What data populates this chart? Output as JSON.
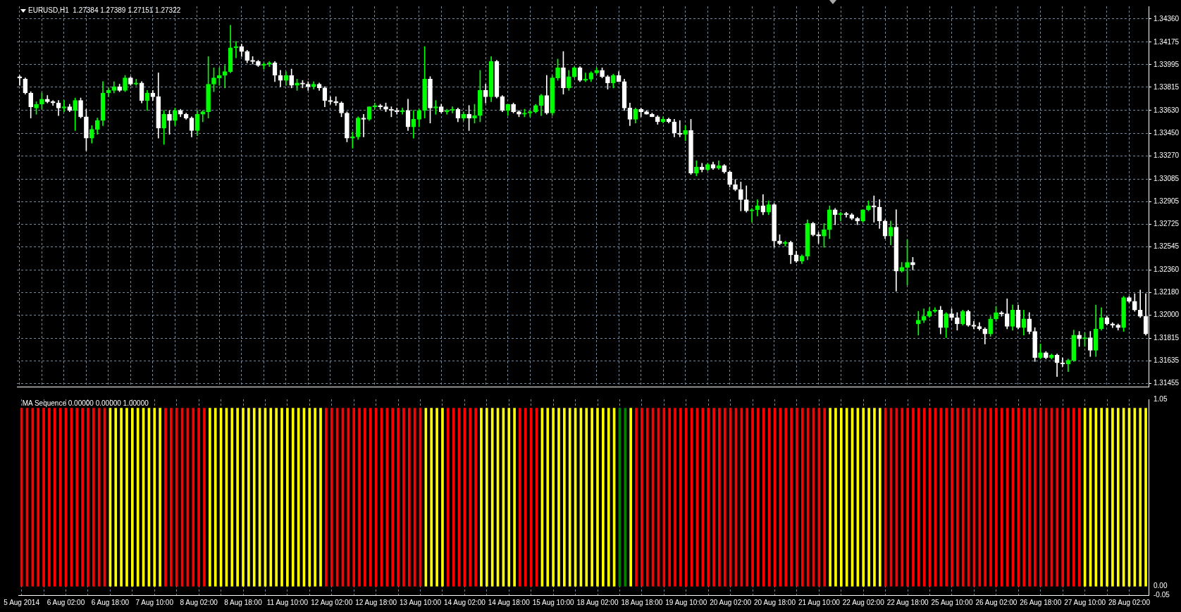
{
  "chart_data": [
    {
      "type": "candlestick",
      "title": "EURUSD,H1  1.27384 1.27389 1.27151 1.27322",
      "categories": [
        null,
        null,
        null,
        null,
        null,
        null,
        null,
        null,
        null,
        null,
        null,
        null,
        null,
        null,
        null,
        null,
        null,
        null,
        null,
        null,
        null,
        null,
        null,
        null,
        null,
        null,
        null,
        null,
        null,
        null,
        null,
        null,
        null,
        null,
        null,
        null,
        null,
        null,
        null,
        null,
        null,
        null,
        null,
        null,
        null,
        null,
        null,
        null,
        null,
        null,
        null,
        null,
        null,
        null,
        null,
        null,
        null,
        null,
        null,
        null,
        null,
        null,
        null,
        null,
        null,
        null,
        null,
        null,
        null,
        null,
        null,
        null,
        null,
        null,
        null,
        null,
        null,
        null,
        null,
        null,
        null,
        null,
        null,
        null,
        null,
        null,
        null,
        null,
        null,
        null,
        null,
        null,
        null,
        null,
        null,
        null,
        null,
        null,
        null,
        null,
        null,
        null,
        null,
        null,
        null,
        null,
        null,
        null,
        null,
        null,
        null,
        null,
        null,
        null,
        null,
        null,
        null,
        null,
        null,
        null,
        null,
        null,
        null,
        null,
        null,
        null,
        null,
        null,
        null,
        null,
        null,
        null,
        null,
        null,
        null,
        null,
        null,
        null,
        null,
        null,
        null,
        null,
        null,
        null,
        null,
        null,
        null,
        null,
        null,
        null,
        null,
        null,
        null,
        null,
        null,
        null,
        null,
        null,
        null,
        null,
        null,
        null,
        null,
        null,
        null,
        null,
        null,
        null,
        null,
        null,
        null,
        null,
        null,
        null,
        null,
        null,
        null,
        null,
        null,
        null,
        null,
        null,
        null,
        null,
        null,
        null,
        null,
        null,
        null,
        null,
        null,
        null,
        null,
        null,
        null,
        null,
        null,
        null,
        null,
        null,
        null,
        null,
        null,
        null
      ],
      "ohlc": [
        [
          1.339,
          1.3391,
          1.3383,
          1.3389
        ],
        [
          1.3388,
          1.3389,
          1.3376,
          1.3377
        ],
        [
          1.3377,
          1.3378,
          1.3357,
          1.3366
        ],
        [
          1.3365,
          1.337,
          1.336,
          1.3368
        ],
        [
          1.3368,
          1.3377,
          1.3364,
          1.3372
        ],
        [
          1.3372,
          1.3375,
          1.3369,
          1.337
        ],
        [
          1.337,
          1.3371,
          1.3367,
          1.3369
        ],
        [
          1.3369,
          1.3371,
          1.3359,
          1.3365
        ],
        [
          1.3365,
          1.3371,
          1.3362,
          1.3366
        ],
        [
          1.3366,
          1.3368,
          1.3362,
          1.3363
        ],
        [
          1.3363,
          1.3373,
          1.3347,
          1.3371
        ],
        [
          1.3371,
          1.3373,
          1.3357,
          1.3358
        ],
        [
          1.3358,
          1.3364,
          1.3331,
          1.3341
        ],
        [
          1.3341,
          1.3351,
          1.3337,
          1.3348
        ],
        [
          1.3348,
          1.3357,
          1.3344,
          1.3355
        ],
        [
          1.3355,
          1.3386,
          1.3351,
          1.3377
        ],
        [
          1.3377,
          1.3381,
          1.3374,
          1.3379
        ],
        [
          1.3379,
          1.3386,
          1.3377,
          1.3382
        ],
        [
          1.3382,
          1.3384,
          1.3378,
          1.3379
        ],
        [
          1.3379,
          1.3391,
          1.3378,
          1.3389
        ],
        [
          1.3389,
          1.339,
          1.3383,
          1.3384
        ],
        [
          1.3384,
          1.3388,
          1.3383,
          1.3385
        ],
        [
          1.3385,
          1.3386,
          1.3369,
          1.3371
        ],
        [
          1.3371,
          1.3379,
          1.3363,
          1.3377
        ],
        [
          1.3377,
          1.3379,
          1.3371,
          1.3374
        ],
        [
          1.3374,
          1.3393,
          1.3341,
          1.3349
        ],
        [
          1.3349,
          1.3363,
          1.3336,
          1.336
        ],
        [
          1.336,
          1.3363,
          1.3344,
          1.3355
        ],
        [
          1.3355,
          1.3365,
          1.3351,
          1.3363
        ],
        [
          1.3363,
          1.3364,
          1.3358,
          1.336
        ],
        [
          1.336,
          1.3361,
          1.3356,
          1.3357
        ],
        [
          1.3357,
          1.3358,
          1.3342,
          1.3347
        ],
        [
          1.3347,
          1.3363,
          1.3343,
          1.336
        ],
        [
          1.336,
          1.3363,
          1.3354,
          1.3362
        ],
        [
          1.3362,
          1.3406,
          1.3357,
          1.3384
        ],
        [
          1.3384,
          1.3397,
          1.3378,
          1.3389
        ],
        [
          1.3389,
          1.3397,
          1.3383,
          1.3391
        ],
        [
          1.3391,
          1.3399,
          1.3381,
          1.3394
        ],
        [
          1.3394,
          1.3431,
          1.3393,
          1.3413
        ],
        [
          1.3413,
          1.3418,
          1.3405,
          1.3414
        ],
        [
          1.3414,
          1.3416,
          1.3406,
          1.341
        ],
        [
          1.341,
          1.3411,
          1.3401,
          1.3403
        ],
        [
          1.3403,
          1.3406,
          1.34,
          1.3402
        ],
        [
          1.3402,
          1.3403,
          1.3398,
          1.3399
        ],
        [
          1.3399,
          1.3401,
          1.3396,
          1.34
        ],
        [
          1.34,
          1.3402,
          1.3398,
          1.3401
        ],
        [
          1.3401,
          1.3402,
          1.3386,
          1.3391
        ],
        [
          1.3391,
          1.3395,
          1.3382,
          1.3387
        ],
        [
          1.3387,
          1.3394,
          1.3383,
          1.3391
        ],
        [
          1.3391,
          1.3396,
          1.3381,
          1.3383
        ],
        [
          1.3383,
          1.3388,
          1.3379,
          1.3385
        ],
        [
          1.3385,
          1.3387,
          1.3381,
          1.3384
        ],
        [
          1.3384,
          1.3386,
          1.3379,
          1.3382
        ],
        [
          1.3382,
          1.3386,
          1.338,
          1.3384
        ],
        [
          1.3384,
          1.3385,
          1.3379,
          1.3381
        ],
        [
          1.3381,
          1.3382,
          1.3366,
          1.3371
        ],
        [
          1.3371,
          1.3374,
          1.3368,
          1.337
        ],
        [
          1.337,
          1.3374,
          1.3367,
          1.3369
        ],
        [
          1.3369,
          1.337,
          1.3358,
          1.3361
        ],
        [
          1.3361,
          1.3362,
          1.3338,
          1.3341
        ],
        [
          1.3341,
          1.3346,
          1.3333,
          1.3342
        ],
        [
          1.3342,
          1.3358,
          1.334,
          1.3357
        ],
        [
          1.3357,
          1.336,
          1.3342,
          1.3356
        ],
        [
          1.3356,
          1.3366,
          1.3355,
          1.3366
        ],
        [
          1.3366,
          1.3369,
          1.3364,
          1.3367
        ],
        [
          1.3367,
          1.3368,
          1.3364,
          1.3366
        ],
        [
          1.3366,
          1.3369,
          1.3362,
          1.3364
        ],
        [
          1.3364,
          1.3366,
          1.3358,
          1.3363
        ],
        [
          1.3363,
          1.3365,
          1.336,
          1.3362
        ],
        [
          1.3362,
          1.3365,
          1.336,
          1.3363
        ],
        [
          1.3363,
          1.3372,
          1.3347,
          1.335
        ],
        [
          1.335,
          1.3363,
          1.3341,
          1.3356
        ],
        [
          1.3356,
          1.3364,
          1.335,
          1.3363
        ],
        [
          1.3363,
          1.3414,
          1.3357,
          1.3388
        ],
        [
          1.3388,
          1.339,
          1.3353,
          1.3365
        ],
        [
          1.3365,
          1.3371,
          1.336,
          1.3366
        ],
        [
          1.3366,
          1.3368,
          1.3361,
          1.3362
        ],
        [
          1.3362,
          1.3364,
          1.336,
          1.3363
        ],
        [
          1.3363,
          1.3366,
          1.3361,
          1.3364
        ],
        [
          1.3364,
          1.3365,
          1.3354,
          1.3357
        ],
        [
          1.3357,
          1.3362,
          1.3355,
          1.336
        ],
        [
          1.336,
          1.3367,
          1.3347,
          1.3357
        ],
        [
          1.3357,
          1.3368,
          1.3353,
          1.3359
        ],
        [
          1.3359,
          1.3395,
          1.3354,
          1.3379
        ],
        [
          1.3379,
          1.3384,
          1.3369,
          1.3374
        ],
        [
          1.3374,
          1.3406,
          1.337,
          1.3402
        ],
        [
          1.3402,
          1.3403,
          1.3373,
          1.3374
        ],
        [
          1.3374,
          1.3375,
          1.3362,
          1.3363
        ],
        [
          1.3363,
          1.3368,
          1.3359,
          1.3368
        ],
        [
          1.3368,
          1.3369,
          1.3361,
          1.3362
        ],
        [
          1.3362,
          1.3363,
          1.3358,
          1.336
        ],
        [
          1.336,
          1.3364,
          1.3358,
          1.3361
        ],
        [
          1.3361,
          1.3363,
          1.3358,
          1.3362
        ],
        [
          1.3362,
          1.3368,
          1.3361,
          1.3367
        ],
        [
          1.3367,
          1.3376,
          1.3359,
          1.3375
        ],
        [
          1.3375,
          1.3391,
          1.336,
          1.3361
        ],
        [
          1.3361,
          1.3391,
          1.3359,
          1.3389
        ],
        [
          1.3389,
          1.3404,
          1.3387,
          1.3397
        ],
        [
          1.3397,
          1.341,
          1.3376,
          1.3381
        ],
        [
          1.3381,
          1.3395,
          1.3379,
          1.339
        ],
        [
          1.339,
          1.3398,
          1.3389,
          1.3397
        ],
        [
          1.3397,
          1.3398,
          1.3386,
          1.3387
        ],
        [
          1.3387,
          1.3393,
          1.3386,
          1.3388
        ],
        [
          1.3388,
          1.3394,
          1.3386,
          1.3393
        ],
        [
          1.3393,
          1.3397,
          1.3392,
          1.3395
        ],
        [
          1.3395,
          1.3397,
          1.3389,
          1.339
        ],
        [
          1.339,
          1.3391,
          1.338,
          1.3385
        ],
        [
          1.3385,
          1.3392,
          1.3381,
          1.3391
        ],
        [
          1.3391,
          1.3394,
          1.3386,
          1.3386
        ],
        [
          1.3386,
          1.3388,
          1.3363,
          1.3365
        ],
        [
          1.3365,
          1.3369,
          1.3351,
          1.3356
        ],
        [
          1.3356,
          1.3365,
          1.3353,
          1.3364
        ],
        [
          1.3364,
          1.3365,
          1.3358,
          1.3362
        ],
        [
          1.3362,
          1.3363,
          1.336,
          1.336
        ],
        [
          1.336,
          1.3361,
          1.3358,
          1.3358
        ],
        [
          1.3358,
          1.3359,
          1.3352,
          1.3354
        ],
        [
          1.3354,
          1.3358,
          1.3353,
          1.3356
        ],
        [
          1.3356,
          1.3357,
          1.3353,
          1.3354
        ],
        [
          1.3354,
          1.3356,
          1.3342,
          1.3345
        ],
        [
          1.3345,
          1.3355,
          1.3342,
          1.3344
        ],
        [
          1.3344,
          1.3351,
          1.3339,
          1.3347
        ],
        [
          1.3347,
          1.3356,
          1.3312,
          1.3313
        ],
        [
          1.3313,
          1.3323,
          1.3311,
          1.3318
        ],
        [
          1.3318,
          1.3321,
          1.3314,
          1.3316
        ],
        [
          1.3316,
          1.3321,
          1.3315,
          1.332
        ],
        [
          1.332,
          1.3322,
          1.3316,
          1.3317
        ],
        [
          1.3317,
          1.3323,
          1.3316,
          1.3319
        ],
        [
          1.3319,
          1.332,
          1.3313,
          1.3314
        ],
        [
          1.3314,
          1.3315,
          1.3302,
          1.3304
        ],
        [
          1.3304,
          1.3308,
          1.3299,
          1.33
        ],
        [
          1.33,
          1.3306,
          1.3283,
          1.3292
        ],
        [
          1.3292,
          1.3303,
          1.3282,
          1.3283
        ],
        [
          1.3283,
          1.3285,
          1.3274,
          1.3284
        ],
        [
          1.3284,
          1.3292,
          1.3279,
          1.3287
        ],
        [
          1.3287,
          1.3296,
          1.328,
          1.3282
        ],
        [
          1.3282,
          1.3291,
          1.328,
          1.3288
        ],
        [
          1.3288,
          1.3289,
          1.3254,
          1.3259
        ],
        [
          1.3259,
          1.3264,
          1.3256,
          1.3257
        ],
        [
          1.3257,
          1.3259,
          1.3255,
          1.3258
        ],
        [
          1.3258,
          1.3259,
          1.3241,
          1.3248
        ],
        [
          1.3248,
          1.3251,
          1.3242,
          1.3243
        ],
        [
          1.3243,
          1.3248,
          1.3241,
          1.3247
        ],
        [
          1.3247,
          1.3276,
          1.3244,
          1.3273
        ],
        [
          1.3273,
          1.3274,
          1.3263,
          1.3264
        ],
        [
          1.3264,
          1.3266,
          1.3257,
          1.3263
        ],
        [
          1.3263,
          1.3273,
          1.3254,
          1.3268
        ],
        [
          1.3268,
          1.3287,
          1.3261,
          1.3284
        ],
        [
          1.3284,
          1.3285,
          1.3272,
          1.328
        ],
        [
          1.328,
          1.3282,
          1.3275,
          1.3281
        ],
        [
          1.3281,
          1.3282,
          1.3278,
          1.328
        ],
        [
          1.328,
          1.3281,
          1.3276,
          1.3277
        ],
        [
          1.3277,
          1.3278,
          1.3272,
          1.3275
        ],
        [
          1.3275,
          1.3284,
          1.3274,
          1.3284
        ],
        [
          1.3284,
          1.3291,
          1.3283,
          1.3287
        ],
        [
          1.3287,
          1.3295,
          1.3274,
          1.3286
        ],
        [
          1.3286,
          1.3292,
          1.3269,
          1.3275
        ],
        [
          1.3275,
          1.3276,
          1.3261,
          1.3263
        ],
        [
          1.3263,
          1.3275,
          1.3256,
          1.327
        ],
        [
          1.327,
          1.3284,
          1.3219,
          1.3235
        ],
        [
          1.3235,
          1.3242,
          1.3234,
          1.3238
        ],
        [
          1.3238,
          1.326,
          1.3224,
          1.3242
        ],
        [
          1.3242,
          1.3246,
          1.3236,
          1.324
        ],
        [
          1.3193,
          1.3203,
          1.3184,
          1.3196
        ],
        [
          1.3196,
          1.3205,
          1.3194,
          1.3199
        ],
        [
          1.3199,
          1.3206,
          1.3198,
          1.3203
        ],
        [
          1.3203,
          1.3206,
          1.3202,
          1.3204
        ],
        [
          1.3204,
          1.3207,
          1.3185,
          1.319
        ],
        [
          1.319,
          1.3202,
          1.3182,
          1.3201
        ],
        [
          1.3201,
          1.3205,
          1.3196,
          1.3198
        ],
        [
          1.3198,
          1.3202,
          1.3188,
          1.3193
        ],
        [
          1.3193,
          1.3204,
          1.3192,
          1.3203
        ],
        [
          1.3203,
          1.3204,
          1.3191,
          1.3192
        ],
        [
          1.3192,
          1.3195,
          1.3189,
          1.3191
        ],
        [
          1.3191,
          1.3194,
          1.3188,
          1.3189
        ],
        [
          1.3189,
          1.319,
          1.3177,
          1.3185
        ],
        [
          1.3185,
          1.3199,
          1.3183,
          1.3197
        ],
        [
          1.3197,
          1.3207,
          1.3195,
          1.3202
        ],
        [
          1.3202,
          1.3203,
          1.3199,
          1.3201
        ],
        [
          1.3201,
          1.3213,
          1.3189,
          1.3191
        ],
        [
          1.3191,
          1.3208,
          1.3188,
          1.3204
        ],
        [
          1.3204,
          1.3208,
          1.3189,
          1.319
        ],
        [
          1.319,
          1.3204,
          1.3184,
          1.3197
        ],
        [
          1.3197,
          1.3202,
          1.3185,
          1.3187
        ],
        [
          1.3187,
          1.319,
          1.3163,
          1.3166
        ],
        [
          1.3166,
          1.3177,
          1.3165,
          1.317
        ],
        [
          1.317,
          1.3171,
          1.3165,
          1.3166
        ],
        [
          1.3166,
          1.3169,
          1.3165,
          1.3168
        ],
        [
          1.3168,
          1.3169,
          1.3151,
          1.3162
        ],
        [
          1.3162,
          1.3166,
          1.3159,
          1.3161
        ],
        [
          1.3161,
          1.3165,
          1.3155,
          1.3164
        ],
        [
          1.3164,
          1.3188,
          1.3163,
          1.3184
        ],
        [
          1.3184,
          1.3187,
          1.3175,
          1.3181
        ],
        [
          1.3181,
          1.3186,
          1.3175,
          1.3182
        ],
        [
          1.3182,
          1.3187,
          1.3167,
          1.3172
        ],
        [
          1.3172,
          1.3208,
          1.3167,
          1.3189
        ],
        [
          1.3189,
          1.3206,
          1.3188,
          1.3198
        ],
        [
          1.3198,
          1.3199,
          1.3192,
          1.3193
        ],
        [
          1.3193,
          1.3194,
          1.319,
          1.3192
        ],
        [
          1.3192,
          1.3193,
          1.3188,
          1.319
        ],
        [
          1.319,
          1.3215,
          1.3187,
          1.3214
        ],
        [
          1.3214,
          1.3215,
          1.321,
          1.3211
        ],
        [
          1.3211,
          1.3217,
          1.3203,
          1.3204
        ],
        [
          1.3204,
          1.322,
          1.3198,
          1.3199
        ],
        [
          1.3199,
          1.3217,
          1.3184,
          1.3185
        ]
      ],
      "colors": [
        "#ffffff",
        "#ffffff",
        "#ffffff",
        "#00ff00",
        "#00ff00",
        "#ffffff",
        "#ffffff",
        "#ffffff",
        "#00ff00",
        "#ffffff",
        "#00ff00",
        "#ffffff",
        "#ffffff",
        "#00ff00",
        "#00ff00",
        "#00ff00",
        "#00ff00",
        "#00ff00",
        "#ffffff",
        "#00ff00",
        "#ffffff",
        "#00ff00",
        "#ffffff",
        "#00ff00",
        "#ffffff",
        "#ffffff",
        "#00ff00",
        "#ffffff",
        "#00ff00",
        "#ffffff",
        "#ffffff",
        "#ffffff",
        "#00ff00",
        "#00ff00",
        "#00ff00",
        "#00ff00",
        "#00ff00",
        "#00ff00",
        "#00ff00",
        "#00ff00",
        "#ffffff",
        "#ffffff",
        "#ffffff",
        "#ffffff",
        "#00ff00",
        "#00ff00",
        "#ffffff",
        "#ffffff",
        "#00ff00",
        "#ffffff",
        "#00ff00",
        "#ffffff",
        "#ffffff",
        "#00ff00",
        "#ffffff",
        "#ffffff",
        "#ffffff",
        "#ffffff",
        "#ffffff",
        "#ffffff",
        "#00ff00",
        "#00ff00",
        "#ffffff",
        "#00ff00",
        "#00ff00",
        "#ffffff",
        "#ffffff",
        "#ffffff",
        "#ffffff",
        "#00ff00",
        "#ffffff",
        "#00ff00",
        "#00ff00",
        "#00ff00",
        "#ffffff",
        "#00ff00",
        "#ffffff",
        "#00ff00",
        "#00ff00",
        "#ffffff",
        "#00ff00",
        "#ffffff",
        "#00ff00",
        "#00ff00",
        "#ffffff",
        "#00ff00",
        "#ffffff",
        "#ffffff",
        "#00ff00",
        "#ffffff",
        "#ffffff",
        "#00ff00",
        "#00ff00",
        "#00ff00",
        "#00ff00",
        "#ffffff",
        "#00ff00",
        "#00ff00",
        "#ffffff",
        "#00ff00",
        "#00ff00",
        "#ffffff",
        "#00ff00",
        "#00ff00",
        "#00ff00",
        "#ffffff",
        "#ffffff",
        "#00ff00",
        "#ffffff",
        "#ffffff",
        "#ffffff",
        "#00ff00",
        "#ffffff",
        "#ffffff",
        "#ffffff",
        "#ffffff",
        "#00ff00",
        "#ffffff",
        "#ffffff",
        "#ffffff",
        "#00ff00",
        "#ffffff",
        "#00ff00",
        "#ffffff",
        "#00ff00",
        "#ffffff",
        "#00ff00",
        "#ffffff",
        "#ffffff",
        "#ffffff",
        "#ffffff",
        "#ffffff",
        "#00ff00",
        "#00ff00",
        "#ffffff",
        "#00ff00",
        "#ffffff",
        "#ffffff",
        "#00ff00",
        "#ffffff",
        "#ffffff",
        "#00ff00",
        "#00ff00",
        "#ffffff",
        "#ffffff",
        "#00ff00",
        "#00ff00",
        "#ffffff",
        "#00ff00",
        "#ffffff",
        "#ffffff",
        "#ffffff",
        "#00ff00",
        "#00ff00",
        "#ffffff",
        "#ffffff",
        "#ffffff",
        "#00ff00",
        "#ffffff",
        "#00ff00",
        "#00ff00",
        "#ffffff",
        "#00ff00",
        "#00ff00",
        "#00ff00",
        "#00ff00",
        "#ffffff",
        "#00ff00",
        "#ffffff",
        "#ffffff",
        "#00ff00",
        "#ffffff",
        "#ffffff",
        "#ffffff",
        "#ffffff",
        "#00ff00",
        "#00ff00",
        "#ffffff",
        "#ffffff",
        "#00ff00",
        "#ffffff",
        "#00ff00",
        "#ffffff",
        "#ffffff",
        "#00ff00",
        "#ffffff",
        "#00ff00",
        "#ffffff",
        "#ffffff",
        "#00ff00",
        "#00ff00",
        "#ffffff",
        "#00ff00",
        "#ffffff",
        "#00ff00",
        "#00ff00",
        "#ffffff",
        "#ffffff",
        "#ffffff",
        "#00ff00",
        "#ffffff",
        "#ffffff",
        "#ffffff",
        "#ffffff"
      ],
      "ylim": [
        1.3143,
        1.3446
      ],
      "yticks": [
        {
          "value": 1.3436,
          "label": "1.34360"
        },
        {
          "value": 1.34175,
          "label": "1.34175"
        },
        {
          "value": 1.33995,
          "label": "1.33995"
        },
        {
          "value": 1.33815,
          "label": "1.33815"
        },
        {
          "value": 1.3363,
          "label": "1.33630"
        },
        {
          "value": 1.3345,
          "label": "1.33450"
        },
        {
          "value": 1.3327,
          "label": "1.33270"
        },
        {
          "value": 1.33085,
          "label": "1.33085"
        },
        {
          "value": 1.32905,
          "label": "1.32905"
        },
        {
          "value": 1.32725,
          "label": "1.32725"
        },
        {
          "value": 1.32545,
          "label": "1.32545"
        },
        {
          "value": 1.3236,
          "label": "1.32360"
        },
        {
          "value": 1.3218,
          "label": "1.32180"
        },
        {
          "value": 1.32,
          "label": "1.32000"
        },
        {
          "value": 1.31815,
          "label": "1.31815"
        },
        {
          "value": 1.31635,
          "label": "1.31635"
        },
        {
          "value": 1.31455,
          "label": "1.31455"
        }
      ],
      "grid": true,
      "tick_labels": "y"
    },
    {
      "type": "bar",
      "title": "MA Sequence 0.00000 0.00000 1.00000",
      "categories": [
        "5 Aug 2014",
        null,
        null,
        null,
        null,
        null,
        null,
        null,
        "6 Aug 02:00",
        null,
        null,
        null,
        null,
        null,
        null,
        null,
        "6 Aug 18:00",
        null,
        null,
        null,
        null,
        null,
        null,
        null,
        "7 Aug 10:00",
        null,
        null,
        null,
        null,
        null,
        null,
        null,
        "8 Aug 02:00",
        null,
        null,
        null,
        null,
        null,
        null,
        null,
        "8 Aug 18:00",
        null,
        null,
        null,
        null,
        null,
        null,
        null,
        "11 Aug 10:00",
        null,
        null,
        null,
        null,
        null,
        null,
        null,
        "12 Aug 02:00",
        null,
        null,
        null,
        null,
        null,
        null,
        null,
        "12 Aug 18:00",
        null,
        null,
        null,
        null,
        null,
        null,
        null,
        "13 Aug 10:00",
        null,
        null,
        null,
        null,
        null,
        null,
        null,
        "14 Aug 02:00",
        null,
        null,
        null,
        null,
        null,
        null,
        null,
        "14 Aug 18:00",
        null,
        null,
        null,
        null,
        null,
        null,
        null,
        "15 Aug 10:00",
        null,
        null,
        null,
        null,
        null,
        null,
        null,
        "18 Aug 02:00",
        null,
        null,
        null,
        null,
        null,
        null,
        null,
        "18 Aug 18:00",
        null,
        null,
        null,
        null,
        null,
        null,
        null,
        "19 Aug 10:00",
        null,
        null,
        null,
        null,
        null,
        null,
        null,
        "20 Aug 02:00",
        null,
        null,
        null,
        null,
        null,
        null,
        null,
        "20 Aug 18:00",
        null,
        null,
        null,
        null,
        null,
        null,
        null,
        "21 Aug 10:00",
        null,
        null,
        null,
        null,
        null,
        null,
        null,
        "22 Aug 02:00",
        null,
        null,
        null,
        null,
        null,
        null,
        null,
        "22 Aug 18:00",
        null,
        null,
        null,
        null,
        null,
        null,
        null,
        "25 Aug 10:00",
        null,
        null,
        null,
        null,
        null,
        null,
        null,
        "26 Aug 02:00",
        null,
        null,
        null,
        null,
        null,
        null,
        null,
        "26 Aug 18:00",
        null,
        null,
        null,
        null,
        null,
        null,
        null,
        "27 Aug 10:00",
        null,
        null,
        null,
        null,
        null,
        null,
        null,
        "28 Aug 02:00",
        null,
        null,
        null
      ],
      "values": [
        1,
        1,
        1,
        1,
        1,
        1,
        1,
        1,
        1,
        1,
        1,
        1,
        1,
        1,
        1,
        1,
        1,
        1,
        1,
        1,
        1,
        1,
        1,
        1,
        1,
        1,
        1,
        1,
        1,
        1,
        1,
        1,
        1,
        1,
        1,
        1,
        1,
        1,
        1,
        1,
        1,
        1,
        1,
        1,
        1,
        1,
        1,
        1,
        1,
        1,
        1,
        1,
        1,
        1,
        1,
        1,
        1,
        1,
        1,
        1,
        1,
        1,
        1,
        1,
        1,
        1,
        1,
        1,
        1,
        1,
        1,
        1,
        1,
        1,
        1,
        1,
        1,
        1,
        1,
        1,
        1,
        1,
        1,
        1,
        1,
        1,
        1,
        1,
        1,
        1,
        1,
        1,
        1,
        1,
        1,
        1,
        1,
        1,
        1,
        1,
        1,
        1,
        1,
        1,
        1,
        1,
        1,
        1,
        1,
        1,
        1,
        1,
        1,
        1,
        1,
        1,
        1,
        1,
        1,
        1,
        1,
        1,
        1,
        1,
        1,
        1,
        1,
        1,
        1,
        1,
        1,
        1,
        1,
        1,
        1,
        1,
        1,
        1,
        1,
        1,
        1,
        1,
        1,
        1,
        1,
        1,
        1,
        1,
        1,
        1,
        1,
        1,
        1,
        1,
        1,
        1,
        1,
        1,
        1,
        1,
        1,
        1,
        1,
        1,
        1,
        1,
        1,
        1,
        1,
        1,
        1,
        1,
        1,
        1,
        1,
        1,
        1,
        1,
        1,
        1,
        1,
        1,
        1,
        1,
        1,
        1,
        1,
        1,
        1,
        1,
        1,
        1,
        1,
        1,
        1,
        1,
        1,
        1,
        1,
        1,
        1,
        1,
        1,
        1
      ],
      "colors": [
        "#ff0000",
        "#ff0000",
        "#ff0000",
        "#ff0000",
        "#ff0000",
        "#ff0000",
        "#ff0000",
        "#ff0000",
        "#ff0000",
        "#ff0000",
        "#ff0000",
        "#ff0000",
        "#ff0000",
        "#ff0000",
        "#ff0000",
        "#ff0000",
        "#ffff00",
        "#ffff00",
        "#ffff00",
        "#ffff00",
        "#ffff00",
        "#ffff00",
        "#ffff00",
        "#ffff00",
        "#ffff00",
        "#ffff00",
        "#ff0000",
        "#ff0000",
        "#ff0000",
        "#ff0000",
        "#ff0000",
        "#ff0000",
        "#ff0000",
        "#ff0000",
        "#ffff00",
        "#ffff00",
        "#ffff00",
        "#ffff00",
        "#ffff00",
        "#ffff00",
        "#ffff00",
        "#ffff00",
        "#ffff00",
        "#ffff00",
        "#ffff00",
        "#ffff00",
        "#ffff00",
        "#ffff00",
        "#ffff00",
        "#ffff00",
        "#ffff00",
        "#ffff00",
        "#ffff00",
        "#ffff00",
        "#ffff00",
        "#ff0000",
        "#ff0000",
        "#ff0000",
        "#ff0000",
        "#ff0000",
        "#ff0000",
        "#ff0000",
        "#ff0000",
        "#ff0000",
        "#ff0000",
        "#ff0000",
        "#ff0000",
        "#ff0000",
        "#ff0000",
        "#ff0000",
        "#ff0000",
        "#ff0000",
        "#ff0000",
        "#ffff00",
        "#ffff00",
        "#ffff00",
        "#ffff00",
        "#ff0000",
        "#ff0000",
        "#ff0000",
        "#ff0000",
        "#ff0000",
        "#ff0000",
        "#ffff00",
        "#ffff00",
        "#ffff00",
        "#ffff00",
        "#ffff00",
        "#ffff00",
        "#ffff00",
        "#ff0000",
        "#ff0000",
        "#ff0000",
        "#ff0000",
        "#ffff00",
        "#ffff00",
        "#ffff00",
        "#ffff00",
        "#ffff00",
        "#ffff00",
        "#ffff00",
        "#ffff00",
        "#ffff00",
        "#ffff00",
        "#ffff00",
        "#ffff00",
        "#ffff00",
        "#ffff00",
        "#008000",
        "#008000",
        "#ffff00",
        "#ff0000",
        "#ff0000",
        "#ff0000",
        "#ff0000",
        "#ff0000",
        "#ff0000",
        "#ff0000",
        "#ff0000",
        "#ff0000",
        "#ff0000",
        "#ff0000",
        "#ff0000",
        "#ff0000",
        "#ff0000",
        "#ff0000",
        "#ff0000",
        "#ff0000",
        "#ff0000",
        "#ff0000",
        "#ff0000",
        "#ff0000",
        "#ff0000",
        "#ff0000",
        "#ff0000",
        "#ff0000",
        "#ff0000",
        "#ff0000",
        "#ff0000",
        "#ff0000",
        "#ff0000",
        "#ff0000",
        "#ff0000",
        "#ff0000",
        "#ff0000",
        "#ff0000",
        "#ffff00",
        "#ffff00",
        "#ffff00",
        "#ffff00",
        "#ffff00",
        "#ffff00",
        "#ffff00",
        "#ffff00",
        "#ffff00",
        "#ffff00",
        "#ff0000",
        "#ff0000",
        "#ff0000",
        "#ff0000",
        "#ff0000",
        "#ff0000",
        "#ff0000",
        "#ff0000",
        "#ff0000",
        "#ff0000",
        "#ff0000",
        "#ff0000",
        "#ff0000",
        "#ff0000",
        "#ff0000",
        "#ff0000",
        "#ff0000",
        "#ff0000",
        "#ff0000",
        "#ff0000",
        "#ff0000",
        "#ff0000",
        "#ff0000",
        "#ff0000",
        "#ff0000",
        "#ff0000",
        "#ff0000",
        "#ff0000",
        "#ff0000",
        "#ff0000",
        "#ff0000",
        "#ff0000",
        "#ff0000",
        "#ff0000",
        "#ff0000",
        "#ff0000",
        "#ffff00",
        "#ffff00",
        "#ffff00",
        "#ffff00",
        "#ffff00",
        "#ffff00",
        "#ffff00",
        "#ffff00",
        "#ffff00",
        "#ffff00",
        "#ffff00",
        "#ffff00"
      ],
      "ylim": [
        -0.05,
        1.05
      ],
      "yticks": [
        1.05,
        {
          "value": 0,
          "label": "0.00"
        },
        -0.05
      ],
      "grid": "x"
    }
  ]
}
